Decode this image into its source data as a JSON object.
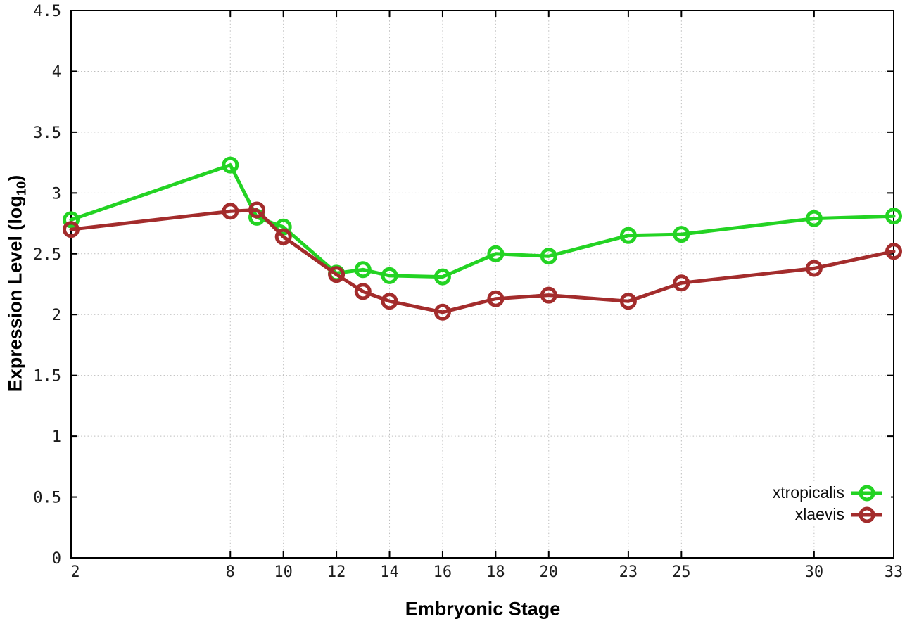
{
  "figure": {
    "background": "#ffffff",
    "axis_color": "#000000",
    "grid_color": "#bdbdbd",
    "tick_label_color": "#1c1c1c"
  },
  "chart_data": {
    "type": "line",
    "title": "",
    "xlabel": "Embryonic Stage",
    "ylabel": "Expression Level (log10)",
    "ylabel_parts": {
      "main": "Expression Level (log",
      "sub": "10",
      "close": ")"
    },
    "xlim": [
      2,
      33
    ],
    "ylim": [
      0,
      4.5
    ],
    "x_tick_values": [
      2,
      8,
      10,
      12,
      14,
      16,
      18,
      20,
      23,
      25,
      30,
      33
    ],
    "x_tick_labels": [
      "2",
      "8",
      "10",
      "12",
      "14",
      "16",
      "18",
      "20",
      "23",
      "25",
      "30",
      "33"
    ],
    "y_tick_values": [
      0,
      0.5,
      1,
      1.5,
      2,
      2.5,
      3,
      3.5,
      4,
      4.5
    ],
    "y_tick_labels": [
      "0",
      "0.5",
      "1",
      "1.5",
      "2",
      "2.5",
      "3",
      "3.5",
      "4",
      "4.5"
    ],
    "grid": true,
    "grid_style": "dotted",
    "legend_position": "bottom-right",
    "marker": "open-circle",
    "x": [
      2,
      8,
      9,
      10,
      12,
      13,
      14,
      16,
      18,
      20,
      23,
      25,
      30,
      33
    ],
    "series": [
      {
        "name": "xtropicalis",
        "color": "#23d323",
        "values": [
          2.78,
          3.23,
          2.8,
          2.72,
          2.34,
          2.37,
          2.32,
          2.31,
          2.5,
          2.48,
          2.65,
          2.66,
          2.79,
          2.81
        ]
      },
      {
        "name": "xlaevis",
        "color": "#a32c2c",
        "values": [
          2.7,
          2.85,
          2.86,
          2.64,
          2.33,
          2.19,
          2.11,
          2.02,
          2.13,
          2.16,
          2.11,
          2.26,
          2.38,
          2.52
        ]
      }
    ]
  }
}
